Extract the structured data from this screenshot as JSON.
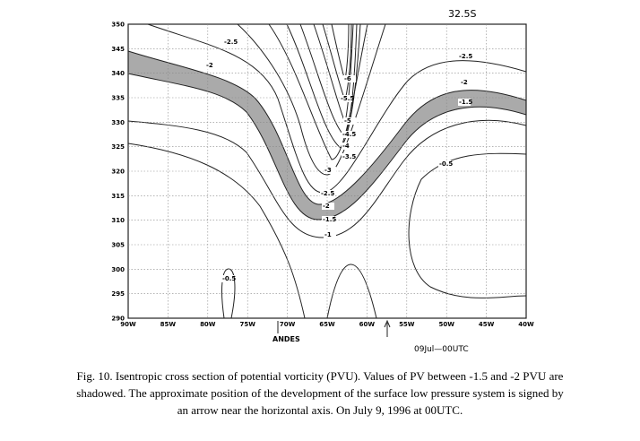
{
  "figure": {
    "panel_label": "32.5S",
    "yticks": [
      290,
      295,
      300,
      305,
      310,
      315,
      320,
      325,
      330,
      335,
      340,
      345,
      350
    ],
    "xticks": [
      "90W",
      "85W",
      "80W",
      "75W",
      "70W",
      "65W",
      "60W",
      "55W",
      "50W",
      "45W",
      "40W"
    ],
    "andes_label": "ANDES",
    "time_label": "09Jul—00UTC",
    "contour_labels": [
      "-2.5",
      "-2",
      "-2.5",
      "-2",
      "-1.5",
      "-6",
      "-5.5",
      "-5",
      "-4.5",
      "-4",
      "-3.5",
      "-3",
      "-2.5",
      "-2",
      "-1.5",
      "-1",
      "-0.5",
      "-0.5"
    ]
  },
  "caption": [
    "Fig. 10. Isentropic cross section of potential vorticity (PVU). Values of PV between -1.5 and -2 PVU are",
    "shadowed. The approximate position of the development of the surface low pressure system is signed by",
    "an arrow near the horizontal axis. On July 9, 1996 at 00UTC."
  ]
}
